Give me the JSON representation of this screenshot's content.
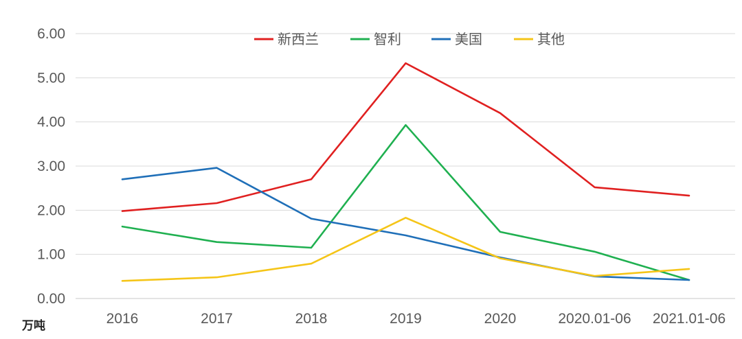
{
  "chart_data": {
    "type": "line",
    "title": "",
    "xlabel": "",
    "ylabel": "万吨",
    "ylim": [
      0,
      6
    ],
    "yticks": [
      "0.00",
      "1.00",
      "2.00",
      "3.00",
      "4.00",
      "5.00",
      "6.00"
    ],
    "grid": true,
    "legend_position": "top-center",
    "categories": [
      "2016",
      "2017",
      "2018",
      "2019",
      "2020",
      "2020.01-06",
      "2021.01-06"
    ],
    "series": [
      {
        "name": "新西兰",
        "color": "#e02020",
        "values": [
          1.98,
          2.16,
          2.7,
          5.33,
          4.2,
          2.52,
          2.33
        ]
      },
      {
        "name": "智利",
        "color": "#1fb050",
        "values": [
          1.63,
          1.28,
          1.15,
          3.93,
          1.51,
          1.06,
          0.42
        ]
      },
      {
        "name": "美国",
        "color": "#1f6fb8",
        "values": [
          2.7,
          2.96,
          1.81,
          1.43,
          0.93,
          0.5,
          0.42
        ]
      },
      {
        "name": "其他",
        "color": "#f5c518",
        "values": [
          0.4,
          0.48,
          0.79,
          1.83,
          0.91,
          0.51,
          0.67
        ]
      }
    ]
  }
}
